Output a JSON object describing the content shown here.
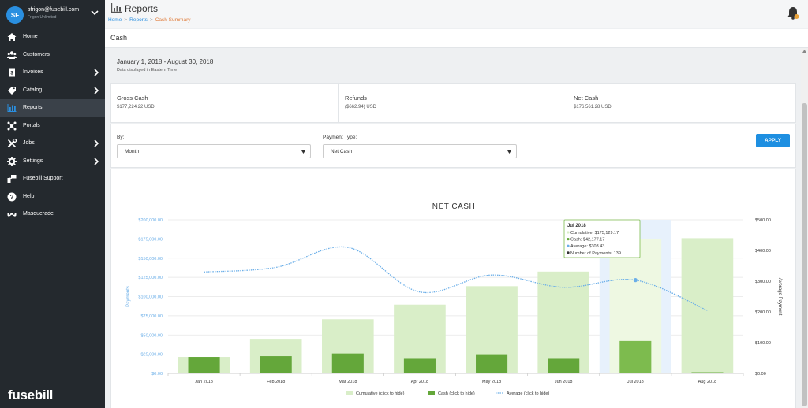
{
  "user": {
    "initials": "SF",
    "email": "sfrigon@fusebill.com",
    "org": "Frigon Unlimited"
  },
  "sidebar": {
    "items": [
      {
        "label": "Home",
        "icon": "home-icon",
        "has_arrow": false,
        "active": false
      },
      {
        "label": "Customers",
        "icon": "users-icon",
        "has_arrow": false,
        "active": false
      },
      {
        "label": "Invoices",
        "icon": "invoice-icon",
        "has_arrow": true,
        "active": false
      },
      {
        "label": "Catalog",
        "icon": "catalog-icon",
        "has_arrow": true,
        "active": false
      },
      {
        "label": "Reports",
        "icon": "bar-chart-icon",
        "has_arrow": false,
        "active": true
      },
      {
        "label": "Portals",
        "icon": "portals-icon",
        "has_arrow": false,
        "active": false
      },
      {
        "label": "Jobs",
        "icon": "tools-icon",
        "has_arrow": true,
        "active": false
      },
      {
        "label": "Settings",
        "icon": "gear-icon",
        "has_arrow": true,
        "active": false
      },
      {
        "label": "Fusebill Support",
        "icon": "support-icon",
        "has_arrow": false,
        "active": false
      },
      {
        "label": "Help",
        "icon": "help-icon",
        "has_arrow": false,
        "active": false
      },
      {
        "label": "Masquerade",
        "icon": "mask-icon",
        "has_arrow": false,
        "active": false
      }
    ],
    "logo": "fusebill",
    "accent": "#2a8fe0"
  },
  "header": {
    "title": "Reports",
    "breadcrumb": {
      "home": "Home",
      "reports": "Reports",
      "current": "Cash Summary"
    }
  },
  "section": {
    "title": "Cash"
  },
  "date_panel": {
    "range": "January 1, 2018 - August 30, 2018",
    "note": "Data displayed in Eastern Time"
  },
  "summary": {
    "gross_label": "Gross Cash",
    "gross_value": "$177,224.22 USD",
    "refunds_label": "Refunds",
    "refunds_value": "($662.94) USD",
    "net_label": "Net Cash",
    "net_value": "$176,561.28 USD"
  },
  "filters": {
    "by_label": "By:",
    "by_value": "Month",
    "type_label": "Payment Type:",
    "type_value": "Net Cash",
    "apply_label": "APPLY"
  },
  "chart_data": {
    "type": "bar",
    "title": "NET CASH",
    "ylabel": "Payments",
    "y2label": "Average Payment",
    "ylim": [
      0,
      200000
    ],
    "y2lim": [
      0,
      500
    ],
    "yticks": [
      "$0.00",
      "$25,000.00",
      "$50,000.00",
      "$75,000.00",
      "$100,000.00",
      "$125,000.00",
      "$150,000.00",
      "$175,000.00",
      "$200,000.00"
    ],
    "y2ticks": [
      "$0.00",
      "$100.00",
      "$200.00",
      "$300.00",
      "$400.00",
      "$500.00"
    ],
    "categories": [
      "Jan 2018",
      "Feb 2018",
      "Mar 2018",
      "Apr 2018",
      "May 2018",
      "Jun 2018",
      "Jul 2018",
      "Aug 2018"
    ],
    "series": [
      {
        "name": "Cumulative (click to hide)",
        "values": [
          21500,
          44000,
          70500,
          89500,
          113500,
          132500,
          175129.17,
          176000
        ],
        "color": "#d9eec8"
      },
      {
        "name": "Cash (click to hide)",
        "values": [
          21500,
          22500,
          26000,
          19000,
          24000,
          19000,
          42177.17,
          1500
        ],
        "color": "#64a73a"
      },
      {
        "name": "Average (click to hide)",
        "values": [
          330,
          345,
          410,
          265,
          320,
          280,
          303.43,
          205
        ],
        "color": "#6aaee8"
      }
    ],
    "highlight_index": 6,
    "legend_position": "bottom",
    "tooltip": {
      "title": "Jul 2018",
      "lines": [
        "Cumulative: $175,129.17",
        "Cash: $42,177.17",
        "Average: $303.43",
        "Number of Payments: 139"
      ]
    }
  }
}
